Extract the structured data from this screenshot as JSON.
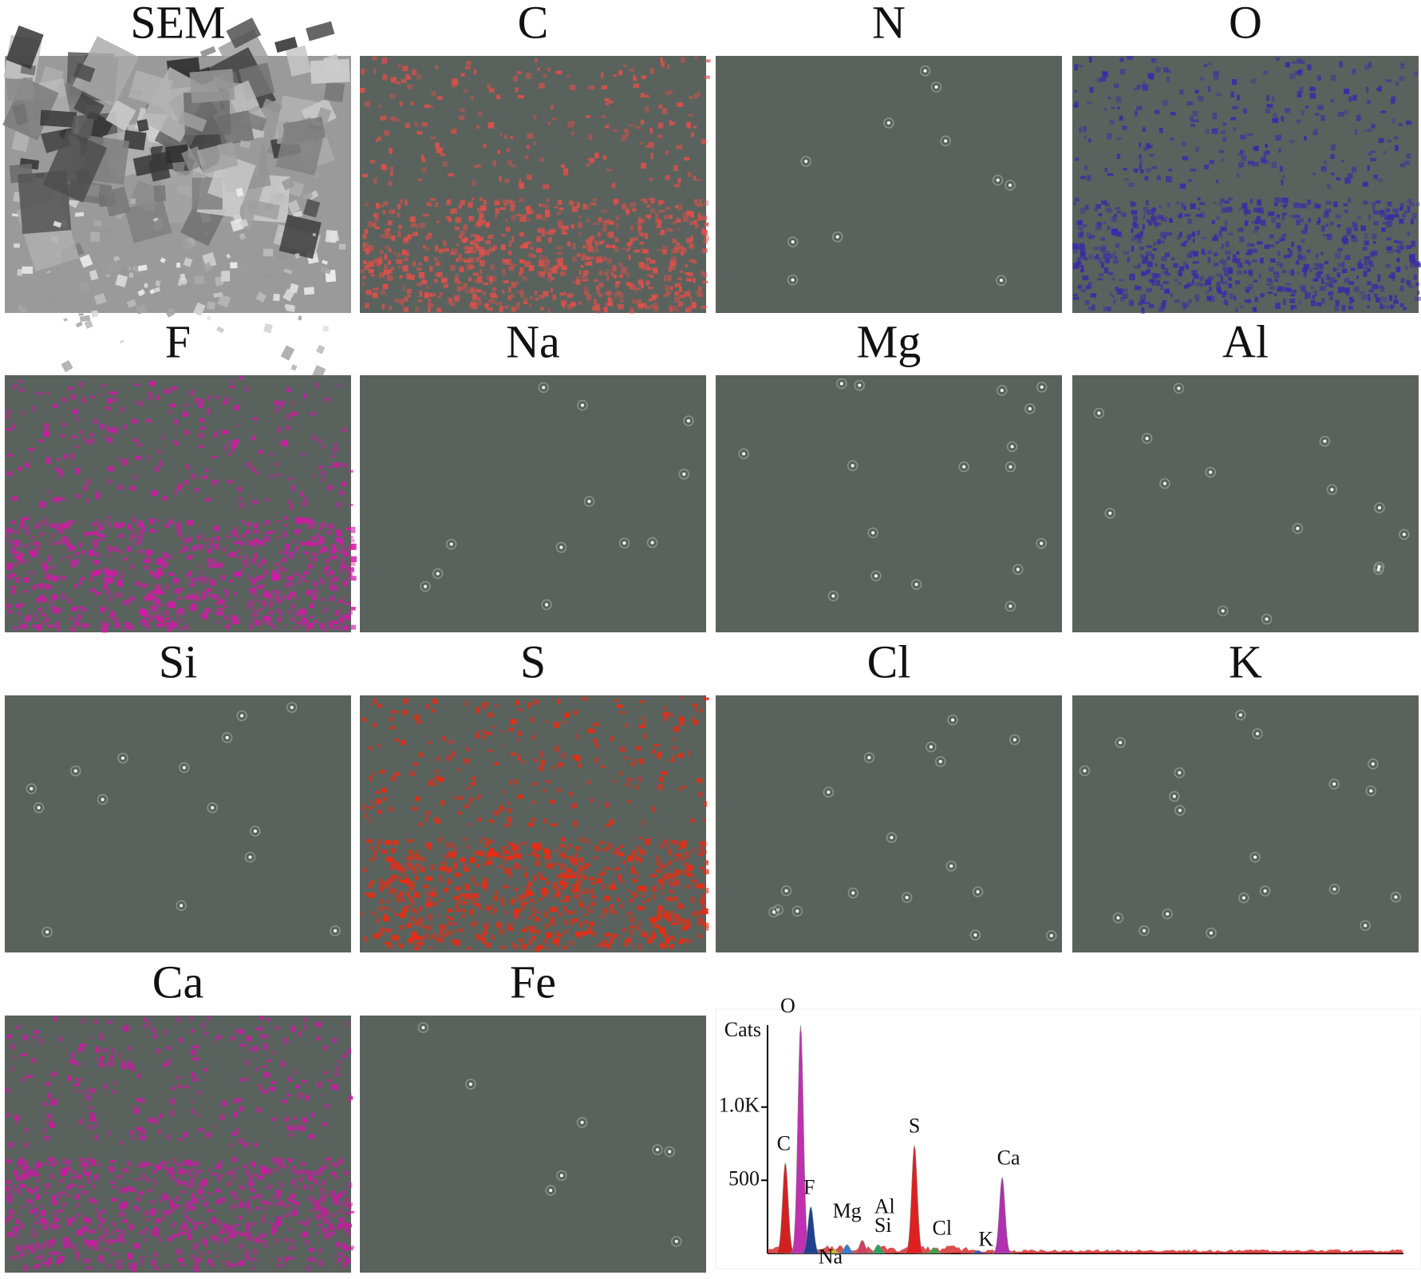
{
  "panels": [
    {
      "label": "SEM",
      "color": "#808080"
    },
    {
      "label": "C",
      "color": "#e0504a"
    },
    {
      "label": "N",
      "color": "#ffffff"
    },
    {
      "label": "O",
      "color": "#3a2aa8"
    },
    {
      "label": "F",
      "color": "#d21aa8"
    },
    {
      "label": "Na",
      "color": "#ffffff"
    },
    {
      "label": "Mg",
      "color": "#ffffff"
    },
    {
      "label": "Al",
      "color": "#ffffff"
    },
    {
      "label": "Si",
      "color": "#ffffff"
    },
    {
      "label": "S",
      "color": "#f02a10"
    },
    {
      "label": "Cl",
      "color": "#ffffff"
    },
    {
      "label": "K",
      "color": "#ffffff"
    },
    {
      "label": "Ca",
      "color": "#c81aa0"
    },
    {
      "label": "Fe",
      "color": "#ffffff"
    }
  ],
  "chart_data": {
    "type": "spectrum",
    "ylabel": "Cats",
    "xlim": [
      0,
      10
    ],
    "ylim": [
      0,
      1560
    ],
    "yticks": [
      {
        "value": 1000,
        "label": "1.0K"
      },
      500
    ],
    "peaks": [
      {
        "label": "C",
        "x": 0.28,
        "value": 620,
        "color": "#d42020"
      },
      {
        "label": "O",
        "x": 0.52,
        "value": 1560,
        "color": "#c030b0"
      },
      {
        "label": "F",
        "x": 0.68,
        "value": 320,
        "color": "#204090"
      },
      {
        "label": "Na",
        "x": 1.04,
        "value": 30,
        "color": "#c8b830"
      },
      {
        "label": "Mg",
        "x": 1.25,
        "value": 60,
        "color": "#3080d0"
      },
      {
        "label": "Al",
        "x": 1.49,
        "value": 90,
        "color": "#d04060"
      },
      {
        "label": "Si",
        "x": 1.74,
        "value": 60,
        "color": "#30a060"
      },
      {
        "label": "S",
        "x": 2.31,
        "value": 740,
        "color": "#e02020"
      },
      {
        "label": "Cl",
        "x": 2.62,
        "value": 40,
        "color": "#40a040"
      },
      {
        "label": "K",
        "x": 3.31,
        "value": 20,
        "color": "#3050c0"
      },
      {
        "label": "Ca",
        "x": 3.69,
        "value": 520,
        "color": "#b030b0"
      }
    ]
  }
}
